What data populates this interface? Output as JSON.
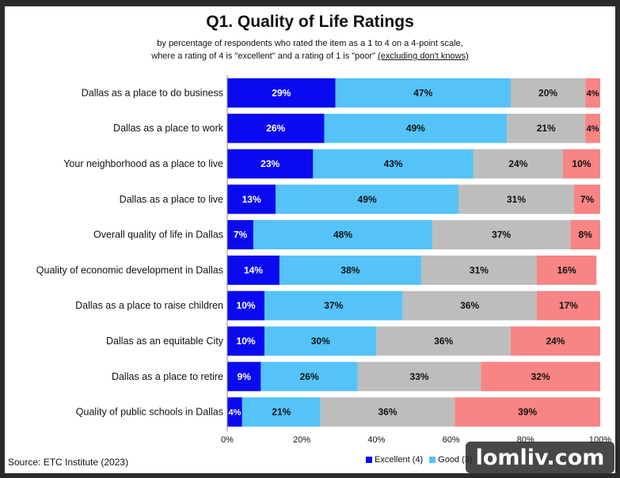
{
  "chart_data": {
    "type": "bar",
    "orientation": "horizontal",
    "stacked": true,
    "title": "Q1. Quality of Life Ratings",
    "subtitle_line1": "by percentage of respondents who rated the item as a 1 to 4 on a 4-point scale,",
    "subtitle_line2_prefix": "where a rating of 4 is \"excellent\" and a rating of 1 is \"poor\" ",
    "subtitle_line2_underlined": "(excluding don't knows)",
    "categories": [
      "Dallas as a place to do business",
      "Dallas as a place to work",
      "Your neighborhood as a place to live",
      "Dallas as a place to live",
      "Overall quality of life in Dallas",
      "Quality of economic development in Dallas",
      "Dallas as a place to raise children",
      "Dallas as an equitable City",
      "Dallas as a place to retire",
      "Quality of public schools in Dallas"
    ],
    "series": [
      {
        "name": "Excellent (4)",
        "color": "#0a0af0",
        "label_color": "#ffffff",
        "values": [
          29,
          26,
          23,
          13,
          7,
          14,
          10,
          10,
          9,
          4
        ]
      },
      {
        "name": "Good (3)",
        "color": "#55c3f7",
        "label_color": "#111111",
        "values": [
          47,
          49,
          43,
          49,
          48,
          38,
          37,
          30,
          26,
          21
        ]
      },
      {
        "name": "",
        "color": "#bdbdbd",
        "label_color": "#111111",
        "values": [
          20,
          21,
          24,
          31,
          37,
          31,
          36,
          36,
          33,
          36
        ]
      },
      {
        "name": "",
        "color": "#f88484",
        "label_color": "#111111",
        "values": [
          4,
          4,
          10,
          7,
          8,
          16,
          17,
          24,
          32,
          39
        ]
      }
    ],
    "xlim": [
      0,
      100
    ],
    "x_ticks": [
      "0%",
      "20%",
      "40%",
      "60%",
      "80%",
      "100%"
    ],
    "grid": false,
    "legend_position": "bottom-right"
  },
  "source": "Source:   ETC Institute (2023)",
  "watermark": "lomliv.com"
}
